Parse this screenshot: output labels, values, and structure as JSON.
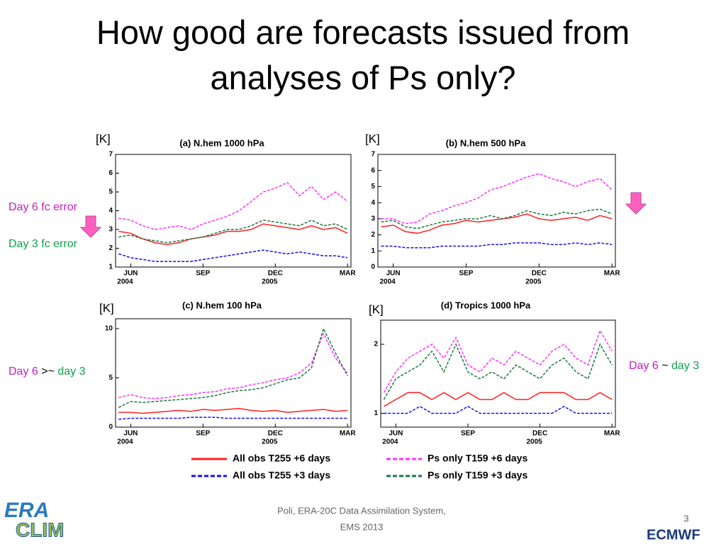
{
  "title": "How good are forecasts issued from analyses of Ps only?",
  "annotations": {
    "day6_error": "Day 6 fc error",
    "day3_error": "Day 3 fc error",
    "left_note": [
      "Day 6",
      " >~ ",
      "day 3"
    ],
    "right_note": [
      "Day 6",
      " ~ ",
      "day 3"
    ]
  },
  "footer": {
    "citation_line1": "Poli, ERA-20C Data Assimilation System,",
    "citation_line2": "EMS 2013",
    "page": "3",
    "logo_left_top": "ERA",
    "logo_left_bottom": "CLIM",
    "logo_right": "ECMWF"
  },
  "chart_data": [
    {
      "type": "line",
      "title": "(a) N.hem 1000 hPa",
      "y_unit": "[K]",
      "x": [
        -0.5,
        0,
        0.5,
        1,
        1.5,
        2,
        2.5,
        3,
        3.5,
        4,
        4.5,
        5,
        5.5,
        6,
        6.5,
        7,
        7.5,
        8,
        8.5,
        9
      ],
      "xlim": [
        -0.63,
        9.14
      ],
      "xticks": [
        {
          "value": 0,
          "label": "JUN"
        },
        {
          "value": 3,
          "label": "SEP"
        },
        {
          "value": 6,
          "label": "DEC"
        },
        {
          "value": 9,
          "label": "MAR"
        }
      ],
      "year_ticks": [
        {
          "value": 0,
          "label": "2004"
        },
        {
          "value": 6,
          "label": "2005"
        }
      ],
      "ylim": [
        1,
        7
      ],
      "yticks": [
        1,
        2,
        3,
        4,
        5,
        6,
        7
      ],
      "series": [
        {
          "name": "All obs T255 +6 days",
          "color": "#ff2020",
          "style": "solid",
          "values": [
            2.9,
            2.8,
            2.5,
            2.3,
            2.2,
            2.3,
            2.5,
            2.6,
            2.7,
            2.9,
            2.9,
            3.0,
            3.3,
            3.2,
            3.1,
            3.0,
            3.2,
            3.0,
            3.1,
            2.8
          ]
        },
        {
          "name": "All obs T255 +3 days",
          "color": "#1010ee",
          "style": "dashed",
          "values": [
            1.7,
            1.5,
            1.4,
            1.3,
            1.3,
            1.3,
            1.3,
            1.4,
            1.5,
            1.6,
            1.7,
            1.8,
            1.9,
            1.8,
            1.7,
            1.8,
            1.7,
            1.6,
            1.6,
            1.5
          ]
        },
        {
          "name": "Ps only T159 +6 days",
          "color": "#ff30ff",
          "style": "dashed",
          "values": [
            3.6,
            3.5,
            3.2,
            3.0,
            3.1,
            3.2,
            3.0,
            3.3,
            3.5,
            3.7,
            4.0,
            4.5,
            5.0,
            5.2,
            5.5,
            4.8,
            5.3,
            4.6,
            5.0,
            4.5
          ]
        },
        {
          "name": "Ps only T159 +3 days",
          "color": "#1a7a40",
          "style": "dashed",
          "values": [
            2.6,
            2.7,
            2.5,
            2.4,
            2.3,
            2.4,
            2.5,
            2.6,
            2.8,
            3.0,
            3.0,
            3.2,
            3.5,
            3.4,
            3.3,
            3.2,
            3.5,
            3.2,
            3.3,
            3.0
          ]
        }
      ]
    },
    {
      "type": "line",
      "title": "(b) N.hem 500 hPa",
      "y_unit": "[K]",
      "x": [
        -0.5,
        0,
        0.5,
        1,
        1.5,
        2,
        2.5,
        3,
        3.5,
        4,
        4.5,
        5,
        5.5,
        6,
        6.5,
        7,
        7.5,
        8,
        8.5,
        9
      ],
      "xlim": [
        -0.63,
        9.14
      ],
      "xticks": [
        {
          "value": 0,
          "label": "JUN"
        },
        {
          "value": 3,
          "label": "SEP"
        },
        {
          "value": 6,
          "label": "DEC"
        },
        {
          "value": 9,
          "label": "MAR"
        }
      ],
      "year_ticks": [
        {
          "value": 0,
          "label": "2004"
        },
        {
          "value": 6,
          "label": "2005"
        }
      ],
      "ylim": [
        0,
        7
      ],
      "yticks": [
        0,
        1,
        2,
        3,
        4,
        5,
        6,
        7
      ],
      "series": [
        {
          "name": "All obs T255 +6 days",
          "color": "#ff2020",
          "style": "solid",
          "values": [
            2.5,
            2.6,
            2.2,
            2.1,
            2.3,
            2.6,
            2.7,
            2.9,
            2.8,
            2.9,
            3.0,
            3.1,
            3.3,
            3.0,
            2.9,
            3.0,
            3.1,
            2.9,
            3.2,
            3.0
          ]
        },
        {
          "name": "All obs T255 +3 days",
          "color": "#1010ee",
          "style": "dashed",
          "values": [
            1.3,
            1.3,
            1.2,
            1.2,
            1.2,
            1.3,
            1.3,
            1.3,
            1.3,
            1.4,
            1.4,
            1.5,
            1.5,
            1.5,
            1.4,
            1.4,
            1.5,
            1.4,
            1.5,
            1.4
          ]
        },
        {
          "name": "Ps only T159 +6 days",
          "color": "#ff30ff",
          "style": "dashed",
          "values": [
            3.0,
            3.0,
            2.7,
            2.8,
            3.3,
            3.5,
            3.8,
            4.0,
            4.3,
            4.8,
            5.0,
            5.3,
            5.6,
            5.8,
            5.5,
            5.3,
            5.0,
            5.3,
            5.5,
            4.8
          ]
        },
        {
          "name": "Ps only T159 +3 days",
          "color": "#1a7a40",
          "style": "dashed",
          "values": [
            2.8,
            2.9,
            2.5,
            2.4,
            2.6,
            2.8,
            2.9,
            3.0,
            3.0,
            3.2,
            3.0,
            3.2,
            3.5,
            3.3,
            3.2,
            3.4,
            3.3,
            3.5,
            3.6,
            3.3
          ]
        }
      ]
    },
    {
      "type": "line",
      "title": "(c) N.hem 100 hPa",
      "y_unit": "[K]",
      "x": [
        -0.5,
        0,
        0.5,
        1,
        1.5,
        2,
        2.5,
        3,
        3.5,
        4,
        4.5,
        5,
        5.5,
        6,
        6.5,
        7,
        7.5,
        8,
        8.5,
        9
      ],
      "xlim": [
        -0.63,
        9.14
      ],
      "xticks": [
        {
          "value": 0,
          "label": "JUN"
        },
        {
          "value": 3,
          "label": "SEP"
        },
        {
          "value": 6,
          "label": "DEC"
        },
        {
          "value": 9,
          "label": "MAR"
        }
      ],
      "year_ticks": [
        {
          "value": 0,
          "label": "2004"
        },
        {
          "value": 6,
          "label": "2005"
        }
      ],
      "ylim": [
        0,
        11
      ],
      "yticks": [
        0,
        5,
        10
      ],
      "series": [
        {
          "name": "All obs T255 +6 days",
          "color": "#ff2020",
          "style": "solid",
          "values": [
            1.5,
            1.5,
            1.4,
            1.5,
            1.6,
            1.7,
            1.6,
            1.8,
            1.7,
            1.8,
            1.9,
            1.7,
            1.6,
            1.7,
            1.5,
            1.6,
            1.7,
            1.8,
            1.6,
            1.7
          ]
        },
        {
          "name": "All obs T255 +3 days",
          "color": "#1010ee",
          "style": "dashed",
          "values": [
            0.8,
            0.9,
            0.9,
            0.9,
            0.9,
            0.9,
            1.0,
            1.0,
            1.0,
            0.9,
            0.9,
            0.9,
            0.9,
            0.9,
            0.9,
            0.9,
            0.9,
            0.9,
            0.9,
            0.9
          ]
        },
        {
          "name": "Ps only T159 +6 days",
          "color": "#ff30ff",
          "style": "dashed",
          "values": [
            3.0,
            3.3,
            3.0,
            2.9,
            3.0,
            3.2,
            3.3,
            3.5,
            3.6,
            3.9,
            4.0,
            4.3,
            4.5,
            4.8,
            5.0,
            5.5,
            6.5,
            9.5,
            7.0,
            5.5
          ]
        },
        {
          "name": "Ps only T159 +3 days",
          "color": "#1a7a40",
          "style": "dashed",
          "values": [
            2.0,
            2.6,
            2.5,
            2.6,
            2.7,
            2.8,
            2.9,
            3.0,
            3.2,
            3.5,
            3.7,
            3.8,
            4.0,
            4.4,
            4.8,
            5.0,
            6.0,
            10.0,
            7.5,
            5.2
          ]
        }
      ]
    },
    {
      "type": "line",
      "title": "(d) Tropics 1000 hPa",
      "y_unit": "[K]",
      "x": [
        -0.5,
        0,
        0.5,
        1,
        1.5,
        2,
        2.5,
        3,
        3.5,
        4,
        4.5,
        5,
        5.5,
        6,
        6.5,
        7,
        7.5,
        8,
        8.5,
        9
      ],
      "xlim": [
        -0.63,
        9.14
      ],
      "xticks": [
        {
          "value": 0,
          "label": "JUN"
        },
        {
          "value": 3,
          "label": "SEP"
        },
        {
          "value": 6,
          "label": "DEC"
        },
        {
          "value": 9,
          "label": "MAR"
        }
      ],
      "year_ticks": [
        {
          "value": 0,
          "label": "2004"
        },
        {
          "value": 6,
          "label": "2005"
        }
      ],
      "ylim": [
        0.8,
        2.35
      ],
      "yticks": [
        1,
        2
      ],
      "series": [
        {
          "name": "All obs T255 +6 days",
          "color": "#ff2020",
          "style": "solid",
          "values": [
            1.1,
            1.2,
            1.3,
            1.3,
            1.2,
            1.3,
            1.2,
            1.3,
            1.2,
            1.2,
            1.3,
            1.2,
            1.2,
            1.3,
            1.3,
            1.3,
            1.2,
            1.2,
            1.3,
            1.2
          ]
        },
        {
          "name": "All obs T255 +3 days",
          "color": "#1010ee",
          "style": "dashed",
          "values": [
            1.0,
            1.0,
            1.0,
            1.1,
            1.0,
            1.0,
            1.0,
            1.1,
            1.0,
            1.0,
            1.0,
            1.0,
            1.0,
            1.0,
            1.0,
            1.1,
            1.0,
            1.0,
            1.0,
            1.0
          ]
        },
        {
          "name": "Ps only T159 +6 days",
          "color": "#ff30ff",
          "style": "dashed",
          "values": [
            1.3,
            1.6,
            1.8,
            1.9,
            2.0,
            1.8,
            2.1,
            1.7,
            1.6,
            1.8,
            1.7,
            1.9,
            1.8,
            1.7,
            1.9,
            2.0,
            1.8,
            1.7,
            2.2,
            1.9
          ]
        },
        {
          "name": "Ps only T159 +3 days",
          "color": "#1a7a40",
          "style": "dashed",
          "values": [
            1.2,
            1.5,
            1.6,
            1.7,
            1.9,
            1.6,
            2.0,
            1.6,
            1.5,
            1.6,
            1.5,
            1.7,
            1.6,
            1.5,
            1.7,
            1.8,
            1.6,
            1.5,
            2.0,
            1.7
          ]
        }
      ]
    }
  ]
}
